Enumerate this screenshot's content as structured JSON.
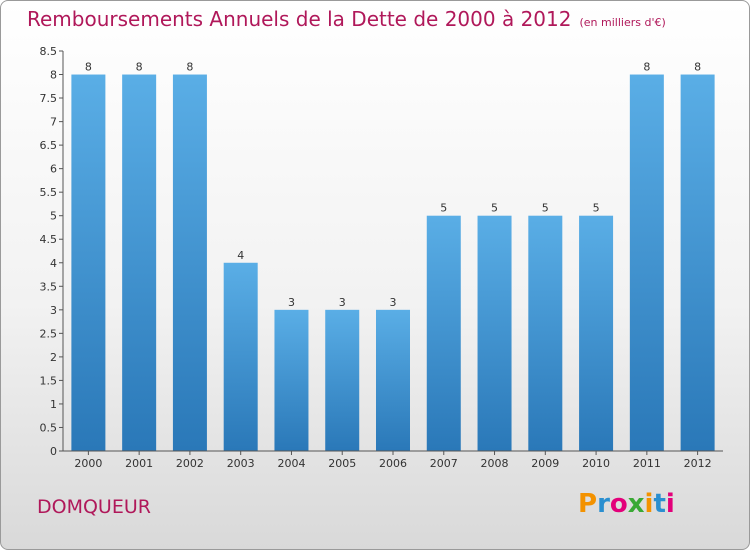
{
  "title": "Remboursements Annuels de la Dette de 2000 à 2012",
  "unit": "(en milliers d'€)",
  "commune": "DOMQUEUR",
  "logo": {
    "letters": [
      "P",
      "r",
      "o",
      "x",
      "i",
      "t",
      "i"
    ],
    "colors": [
      "#f39200",
      "#2a8fd0",
      "#e3007a",
      "#3aa935",
      "#f39200",
      "#2a8fd0",
      "#e3007a"
    ]
  },
  "colors": {
    "bar_top": "#5aaee6",
    "bar_bottom": "#2a78b8",
    "title": "#b0185a"
  },
  "chart_data": {
    "type": "bar",
    "title": "Remboursements Annuels de la Dette de 2000 à 2012",
    "xlabel": "",
    "ylabel": "",
    "categories": [
      "2000",
      "2001",
      "2002",
      "2003",
      "2004",
      "2005",
      "2006",
      "2007",
      "2008",
      "2009",
      "2010",
      "2011",
      "2012"
    ],
    "values": [
      8,
      8,
      8,
      4,
      3,
      3,
      3,
      5,
      5,
      5,
      5,
      8,
      8
    ],
    "value_labels": [
      "8",
      "8",
      "8",
      "4",
      "3",
      "3",
      "3",
      "5",
      "5",
      "5",
      "5",
      "8",
      "8"
    ],
    "ylim": [
      0,
      8.5
    ],
    "yticks": [
      0,
      0.5,
      1,
      1.5,
      2,
      2.5,
      3,
      3.5,
      4,
      4.5,
      5,
      5.5,
      6,
      6.5,
      7,
      7.5,
      8,
      8.5
    ],
    "ytick_labels": [
      "0",
      "0.5",
      "1",
      "1.5",
      "2",
      "2.5",
      "3",
      "3.5",
      "4",
      "4.5",
      "5",
      "5.5",
      "6",
      "6.5",
      "7",
      "7.5",
      "8",
      "8.5"
    ],
    "grid": false
  }
}
